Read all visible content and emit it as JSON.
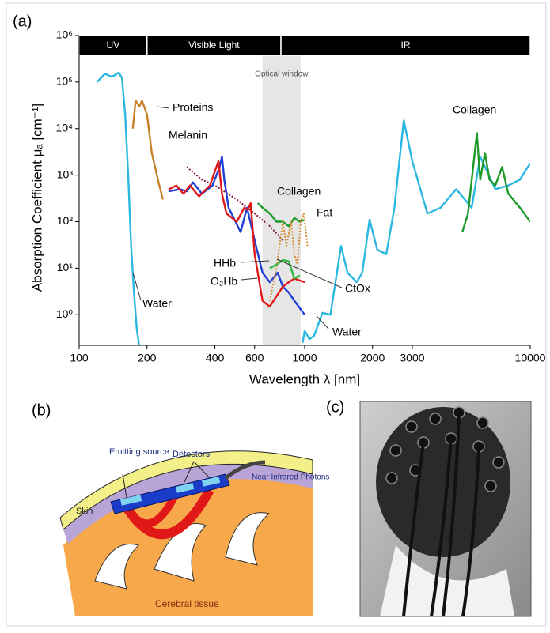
{
  "chart_data": {
    "type": "line",
    "panel_label": "(a)",
    "x_label": "Wavelength λ [nm]",
    "y_label": "Absorption Coefficient μₐ [cm⁻¹]",
    "xlog": true,
    "ylog": true,
    "xlim": [
      100,
      10000
    ],
    "ylim": [
      0.22,
      1000000
    ],
    "xticks": [
      100,
      200,
      400,
      600,
      1000,
      2000,
      3000,
      10000
    ],
    "yticks": [
      {
        "value": 1,
        "label": "10⁰"
      },
      {
        "value": 10,
        "label": "10¹"
      },
      {
        "value": 100,
        "label": "10²"
      },
      {
        "value": 1000,
        "label": "10³"
      },
      {
        "value": 10000,
        "label": "10⁴"
      },
      {
        "value": 100000,
        "label": "10⁵"
      },
      {
        "value": 1000000,
        "label": "10⁶"
      }
    ],
    "bands": [
      {
        "label": "UV",
        "range": [
          100,
          200
        ]
      },
      {
        "label": "Visible Light",
        "range": [
          200,
          785
        ]
      },
      {
        "label": "IR",
        "range": [
          785,
          10000
        ]
      }
    ],
    "window": {
      "label": "Optical window",
      "range": [
        650,
        960
      ]
    },
    "series": [
      {
        "name": "Water",
        "color": "#2bb8e0",
        "style": "solid",
        "x": [
          120,
          130,
          140,
          150,
          155,
          160,
          165,
          170,
          175,
          180,
          185,
          500,
          980,
          1000,
          1050,
          1100,
          1200,
          1300,
          1450,
          1550,
          1700,
          1800,
          1940,
          2100,
          2300,
          2500,
          2750,
          3000,
          3500,
          4000,
          4700,
          5500,
          6000,
          7000,
          8000,
          9000,
          10000
        ],
        "values": [
          100000,
          150000,
          130000,
          160000,
          120000,
          20000,
          1000,
          30,
          3,
          0.5,
          0.2,
          null,
          0.25,
          0.45,
          0.3,
          0.35,
          1.1,
          1,
          30,
          8,
          5,
          8,
          110,
          25,
          20,
          200,
          15000,
          2000,
          150,
          200,
          500,
          200,
          2500,
          500,
          600,
          800,
          1800
        ]
      },
      {
        "name": "Proteins",
        "color": "#c8822a",
        "style": "solid",
        "x": [
          173,
          178,
          185,
          190,
          200,
          210,
          225,
          235
        ],
        "values": [
          10000,
          40000,
          30000,
          40000,
          20000,
          3000,
          700,
          300
        ]
      },
      {
        "name": "Melanin",
        "color": "#8b1a3a",
        "style": "dotted",
        "x": [
          300,
          350,
          400,
          500,
          600,
          700,
          800
        ],
        "values": [
          1500,
          800,
          600,
          300,
          150,
          80,
          40
        ]
      },
      {
        "name": "HHb",
        "color": "#1f3fd6",
        "style": "solid",
        "x": [
          250,
          280,
          300,
          320,
          350,
          390,
          420,
          430,
          440,
          460,
          520,
          555,
          600,
          650,
          700,
          760,
          800,
          850,
          900,
          1000
        ],
        "values": [
          450,
          500,
          450,
          700,
          400,
          600,
          1500,
          2500,
          800,
          200,
          60,
          200,
          40,
          8,
          5,
          8,
          4,
          3,
          2,
          1
        ]
      },
      {
        "name": "O₂Hb",
        "color": "#e01818",
        "style": "solid",
        "x": [
          250,
          270,
          290,
          310,
          340,
          380,
          415,
          430,
          450,
          500,
          540,
          560,
          576,
          600,
          650,
          700,
          750,
          800,
          850,
          900,
          1000
        ],
        "values": [
          500,
          600,
          400,
          600,
          350,
          600,
          2000,
          400,
          150,
          100,
          200,
          180,
          250,
          20,
          2,
          1.5,
          2.5,
          4,
          5,
          6,
          5
        ]
      },
      {
        "name": "Collagen",
        "color": "#1e9a2a",
        "style": "solid",
        "x": [
          620,
          650,
          700,
          750,
          800,
          850,
          900,
          950,
          1000,
          3000,
          5000,
          5300,
          5800,
          6000,
          6300,
          6600,
          7000,
          7500,
          8000,
          9000,
          10000
        ],
        "values": [
          250,
          200,
          150,
          100,
          100,
          80,
          120,
          100,
          110,
          null,
          60,
          150,
          8000,
          800,
          3000,
          800,
          600,
          1500,
          400,
          200,
          100
        ]
      },
      {
        "name": "CtOx",
        "color": "#2cb83a",
        "style": "solid",
        "x": [
          700,
          750,
          800,
          850,
          900,
          950
        ],
        "values": [
          10,
          12,
          15,
          14,
          6,
          7
        ]
      },
      {
        "name": "Fat",
        "color": "#d48a2a",
        "style": "dotted",
        "x": [
          700,
          750,
          800,
          830,
          870,
          900,
          930,
          960,
          990,
          1030
        ],
        "values": [
          2,
          10,
          100,
          30,
          100,
          20,
          12,
          100,
          150,
          30
        ]
      }
    ],
    "annotations": [
      "Proteins",
      "Melanin",
      "Collagen",
      "Collagen",
      "Fat",
      "HHb",
      "O₂Hb",
      "CtOx",
      "Water",
      "Water"
    ]
  },
  "panel_b": {
    "label": "(b)",
    "texts": [
      "Emitting source",
      "Detectors",
      "Near Infrared Photons",
      "Skin",
      "Cerebral tissue"
    ]
  },
  "panel_c": {
    "label": "(c)"
  }
}
